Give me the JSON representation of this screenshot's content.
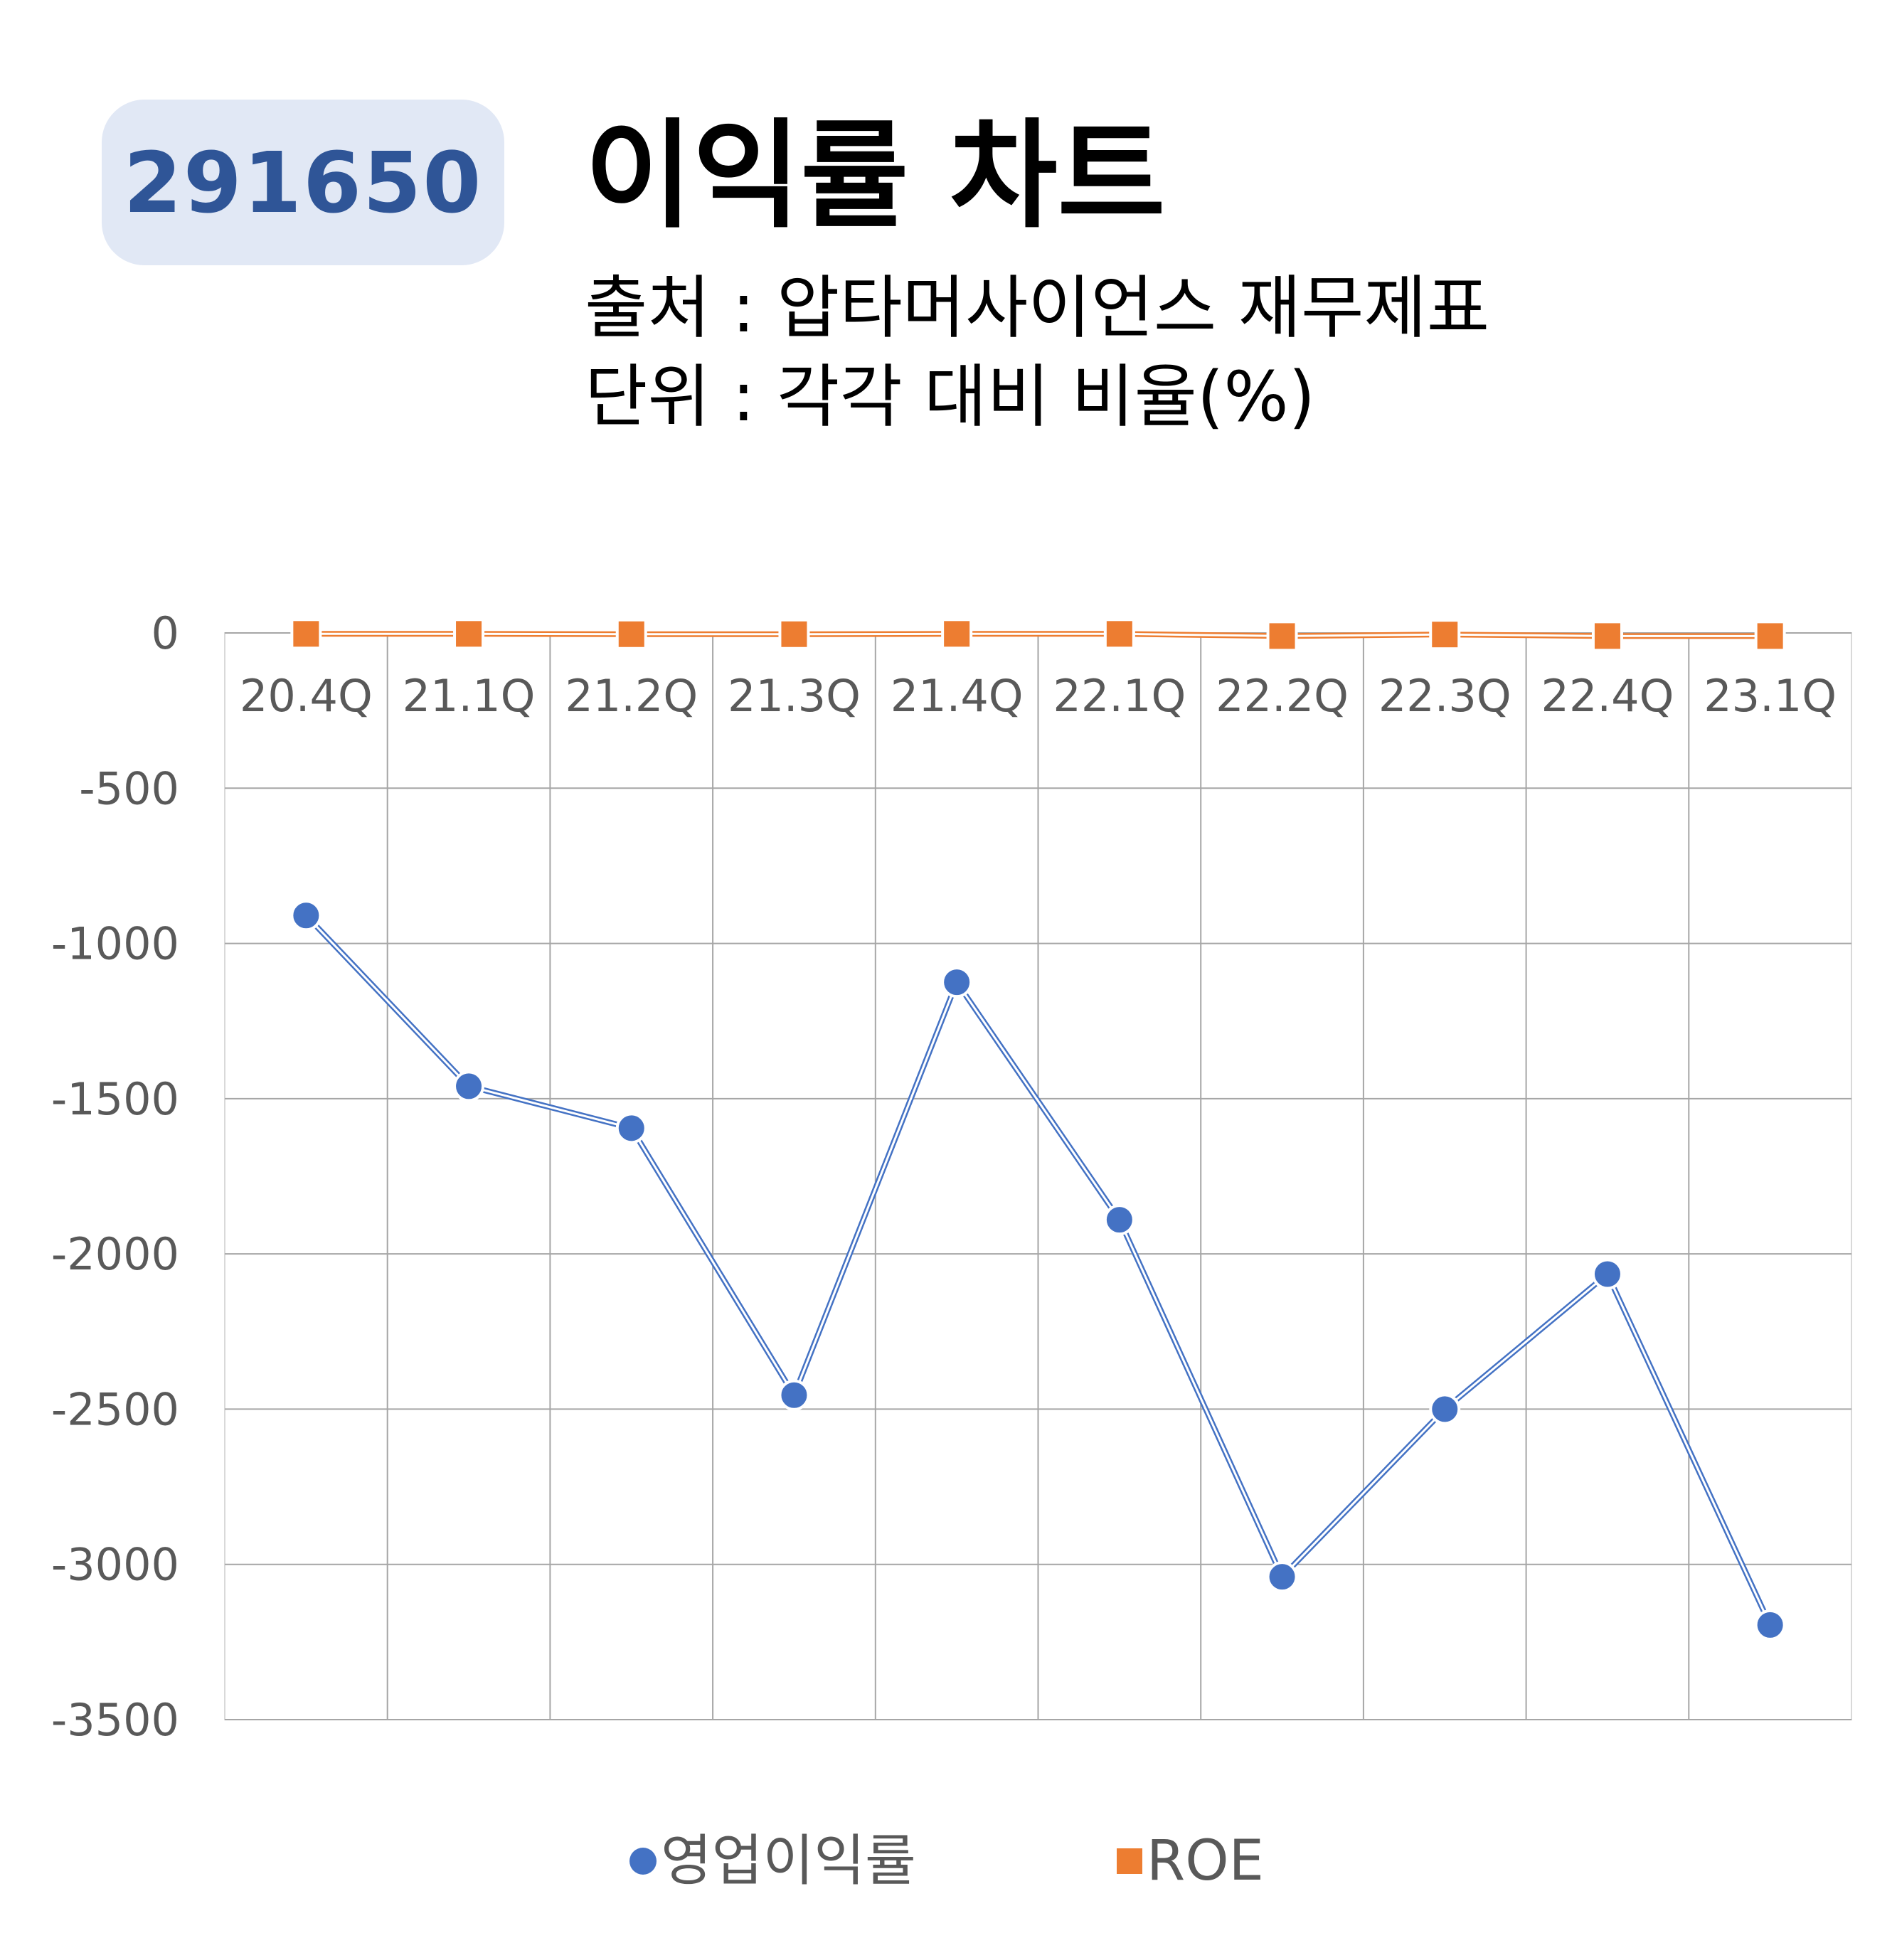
{
  "header": {
    "code": "291650",
    "title": "이익률 차트",
    "source": "출처 : 압타머사이언스 재무제표",
    "unit": "단위 : 각각 대비 비율(%)"
  },
  "colors": {
    "series1": "#4472c4",
    "series2": "#ed7d31",
    "badge_bg": "#e1e8f5",
    "badge_text": "#2f5597",
    "grid": "#a6a6a6",
    "tick_text": "#595959"
  },
  "legend": {
    "item1": "영업이익률",
    "item2": "ROE"
  },
  "chart_data": {
    "type": "line",
    "categories": [
      "20.4Q",
      "21.1Q",
      "21.2Q",
      "21.3Q",
      "21.4Q",
      "22.1Q",
      "22.2Q",
      "22.3Q",
      "22.4Q",
      "23.1Q"
    ],
    "series": [
      {
        "name": "영업이익률",
        "marker": "circle",
        "values": [
          -910,
          -1460,
          -1595,
          -2455,
          -1125,
          -1890,
          -3040,
          -2500,
          -2065,
          -3195
        ]
      },
      {
        "name": "ROE",
        "marker": "square",
        "values": [
          -3,
          -3,
          -4,
          -4,
          -3,
          -3,
          -10,
          -5,
          -10,
          -10
        ]
      }
    ],
    "ylim": [
      -3500,
      0
    ],
    "yticks": [
      "0",
      "-500",
      "-1000",
      "-1500",
      "-2000",
      "-2500",
      "-3000",
      "-3500"
    ],
    "xaxis_position": "top",
    "grid": true,
    "legend_position": "bottom"
  }
}
